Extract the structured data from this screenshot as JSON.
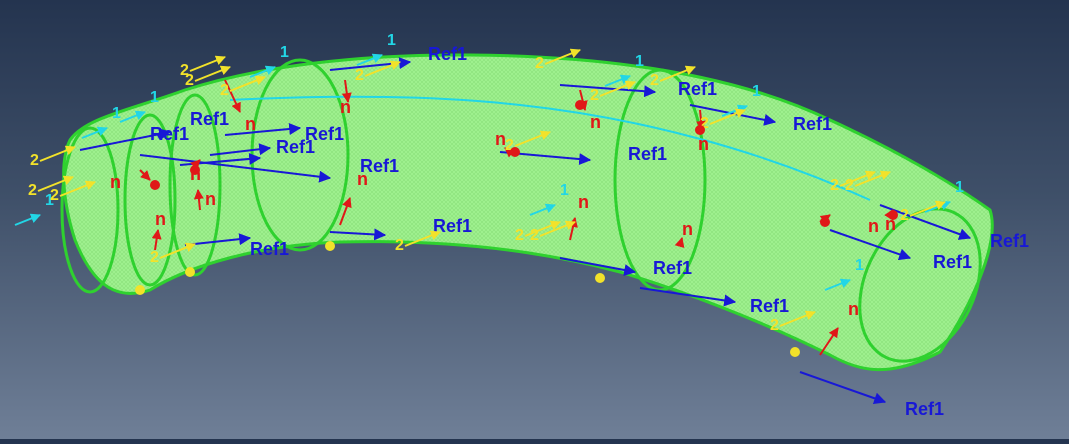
{
  "viewport": {
    "part": "curved pipe",
    "colors": {
      "surface": "#9ef08e",
      "edge": "#2fd12f",
      "background_top": "#24344f",
      "background_bottom": "#6f7f97",
      "ref_axis": "#1818d6",
      "axis_1": "#22d6e6",
      "axis_2": "#f2e22a",
      "normal": "#e01818"
    },
    "labels": {
      "ref": "Ref1",
      "one": "1",
      "two": "2",
      "normal": "n"
    }
  }
}
